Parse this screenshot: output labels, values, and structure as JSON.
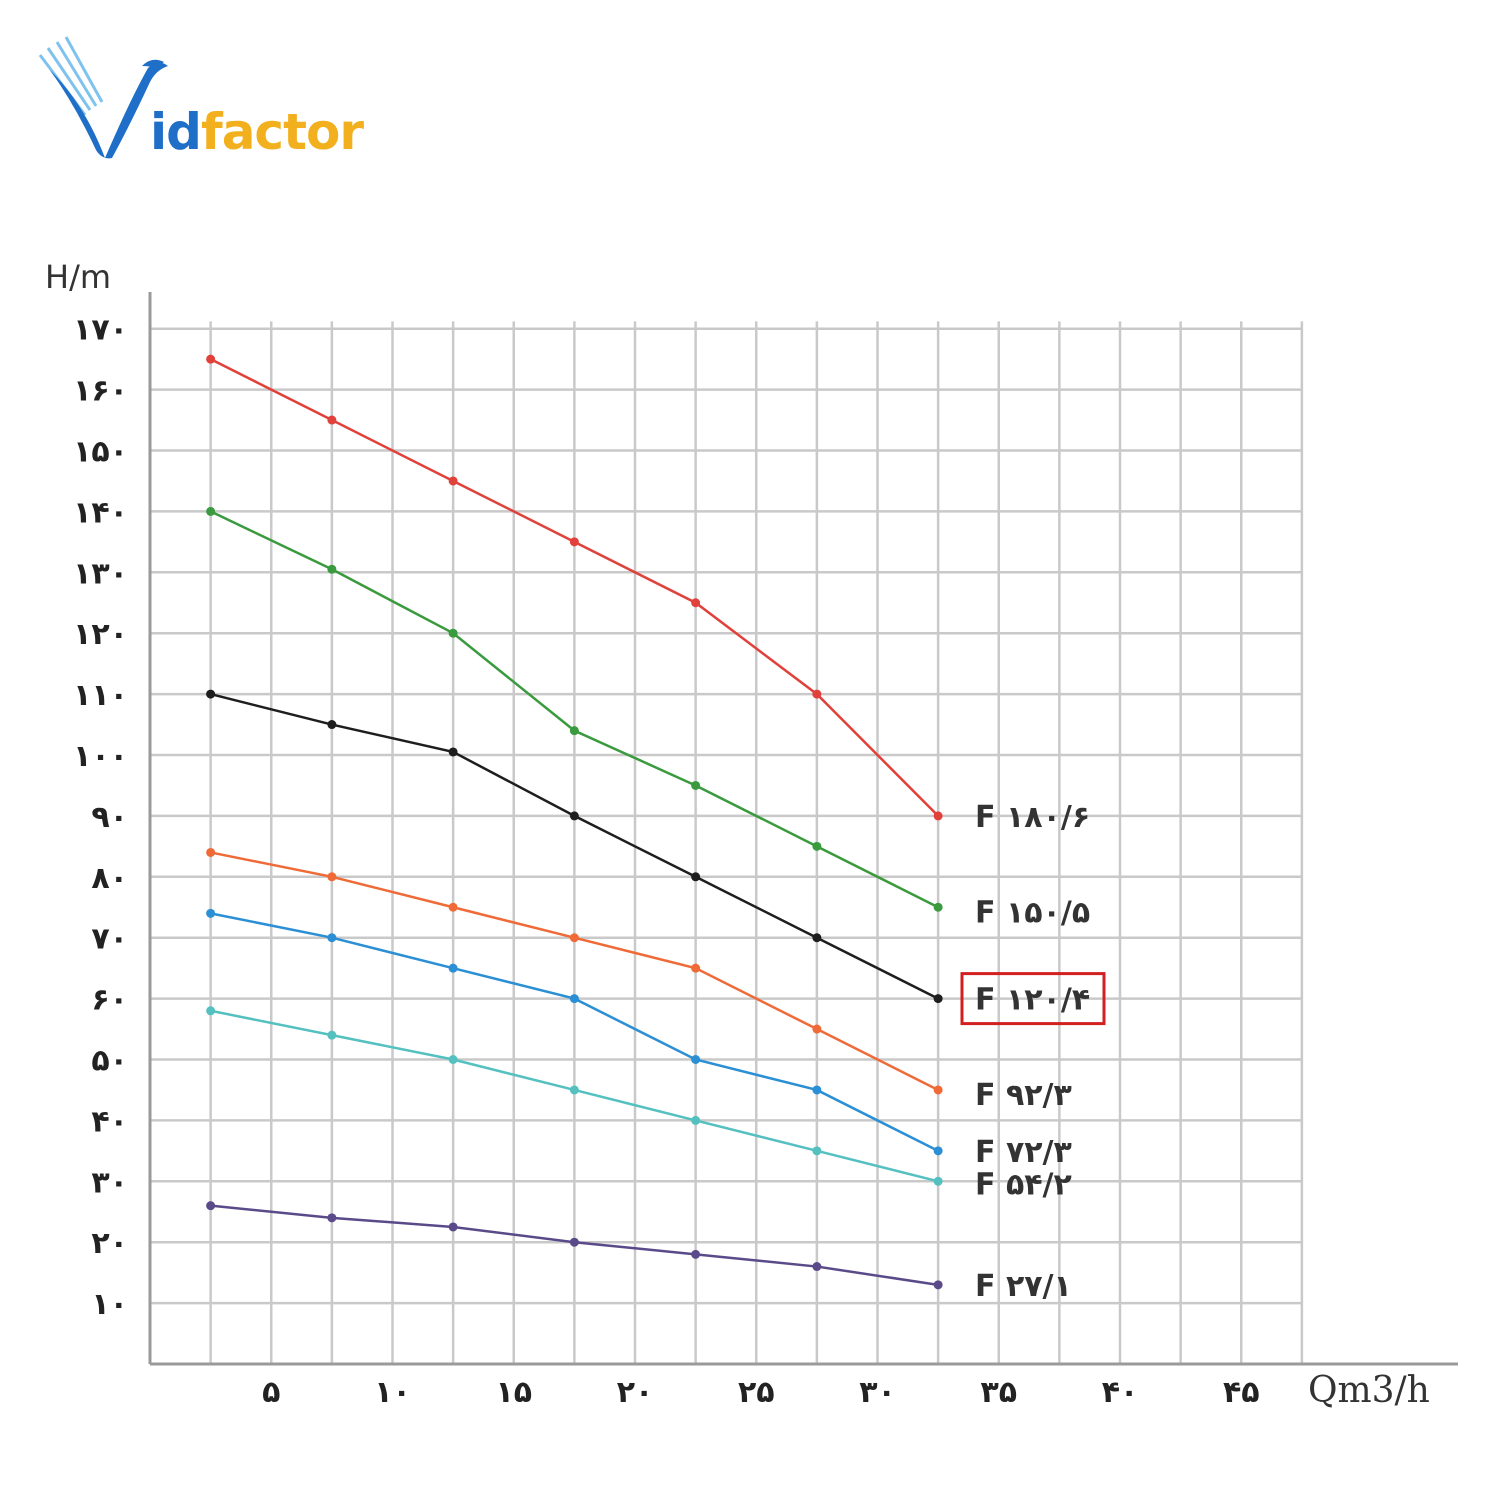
{
  "brand": {
    "logo_text_part1": "id",
    "logo_text_part2": "factor",
    "logo_letter": "V",
    "colors": {
      "blue": "#1f6fc8",
      "gold": "#f2b01e"
    }
  },
  "chart_data": {
    "type": "line",
    "xlabel": "Qm3/h",
    "ylabel": "H/m",
    "xlim": [
      0,
      47.5
    ],
    "ylim": [
      0,
      172
    ],
    "grid": true,
    "x_ticks": [
      {
        "value": 5,
        "label": "۵"
      },
      {
        "value": 10,
        "label": "۱۰"
      },
      {
        "value": 15,
        "label": "۱۵"
      },
      {
        "value": 20,
        "label": "۲۰"
      },
      {
        "value": 25,
        "label": "۲۵"
      },
      {
        "value": 30,
        "label": "۳۰"
      },
      {
        "value": 35,
        "label": "۳۵"
      },
      {
        "value": 40,
        "label": "۴۰"
      },
      {
        "value": 45,
        "label": "۴۵"
      }
    ],
    "y_ticks": [
      {
        "value": 10,
        "label": "۱۰"
      },
      {
        "value": 20,
        "label": "۲۰"
      },
      {
        "value": 30,
        "label": "۳۰"
      },
      {
        "value": 40,
        "label": "۴۰"
      },
      {
        "value": 50,
        "label": "۵۰"
      },
      {
        "value": 60,
        "label": "۶۰"
      },
      {
        "value": 70,
        "label": "۷۰"
      },
      {
        "value": 80,
        "label": "۸۰"
      },
      {
        "value": 90,
        "label": "۹۰"
      },
      {
        "value": 100,
        "label": "۱۰۰"
      },
      {
        "value": 110,
        "label": "۱۱۰"
      },
      {
        "value": 120,
        "label": "۱۲۰"
      },
      {
        "value": 130,
        "label": "۱۳۰"
      },
      {
        "value": 140,
        "label": "۱۴۰"
      },
      {
        "value": 150,
        "label": "۱۵۰"
      },
      {
        "value": 160,
        "label": "۱۶۰"
      },
      {
        "value": 170,
        "label": "۱۷۰"
      }
    ],
    "x": [
      2.5,
      7.5,
      12.5,
      17.5,
      22.5,
      27.5,
      32.5
    ],
    "series": [
      {
        "name": "F ۱۸۰/۶",
        "color": "#e0413a",
        "values": [
          165,
          155,
          145,
          135,
          125,
          110,
          90
        ],
        "highlighted": false
      },
      {
        "name": "F ۱۵۰/۵",
        "color": "#3a9a3e",
        "values": [
          140,
          130.5,
          120,
          104,
          95,
          85,
          75
        ],
        "highlighted": false
      },
      {
        "name": "F ۱۲۰/۴",
        "color": "#1e1e1e",
        "values": [
          110,
          105,
          100.5,
          90,
          80,
          70,
          60
        ],
        "highlighted": true
      },
      {
        "name": "F ۹۲/۳",
        "color": "#ef6a37",
        "values": [
          84,
          80,
          75,
          70,
          65,
          55,
          45
        ],
        "highlighted": false
      },
      {
        "name": "F ۷۲/۳",
        "color": "#2a8fd4",
        "values": [
          74,
          70,
          65,
          60,
          50,
          45,
          35
        ],
        "highlighted": false
      },
      {
        "name": "F ۵۴/۲",
        "color": "#55c0c0",
        "values": [
          58,
          54,
          50,
          45,
          40,
          35,
          30
        ],
        "highlighted": false
      },
      {
        "name": "F ۲۷/۱",
        "color": "#5a4a8a",
        "values": [
          26,
          24,
          22.5,
          20,
          18,
          16,
          13
        ],
        "highlighted": false
      }
    ]
  }
}
